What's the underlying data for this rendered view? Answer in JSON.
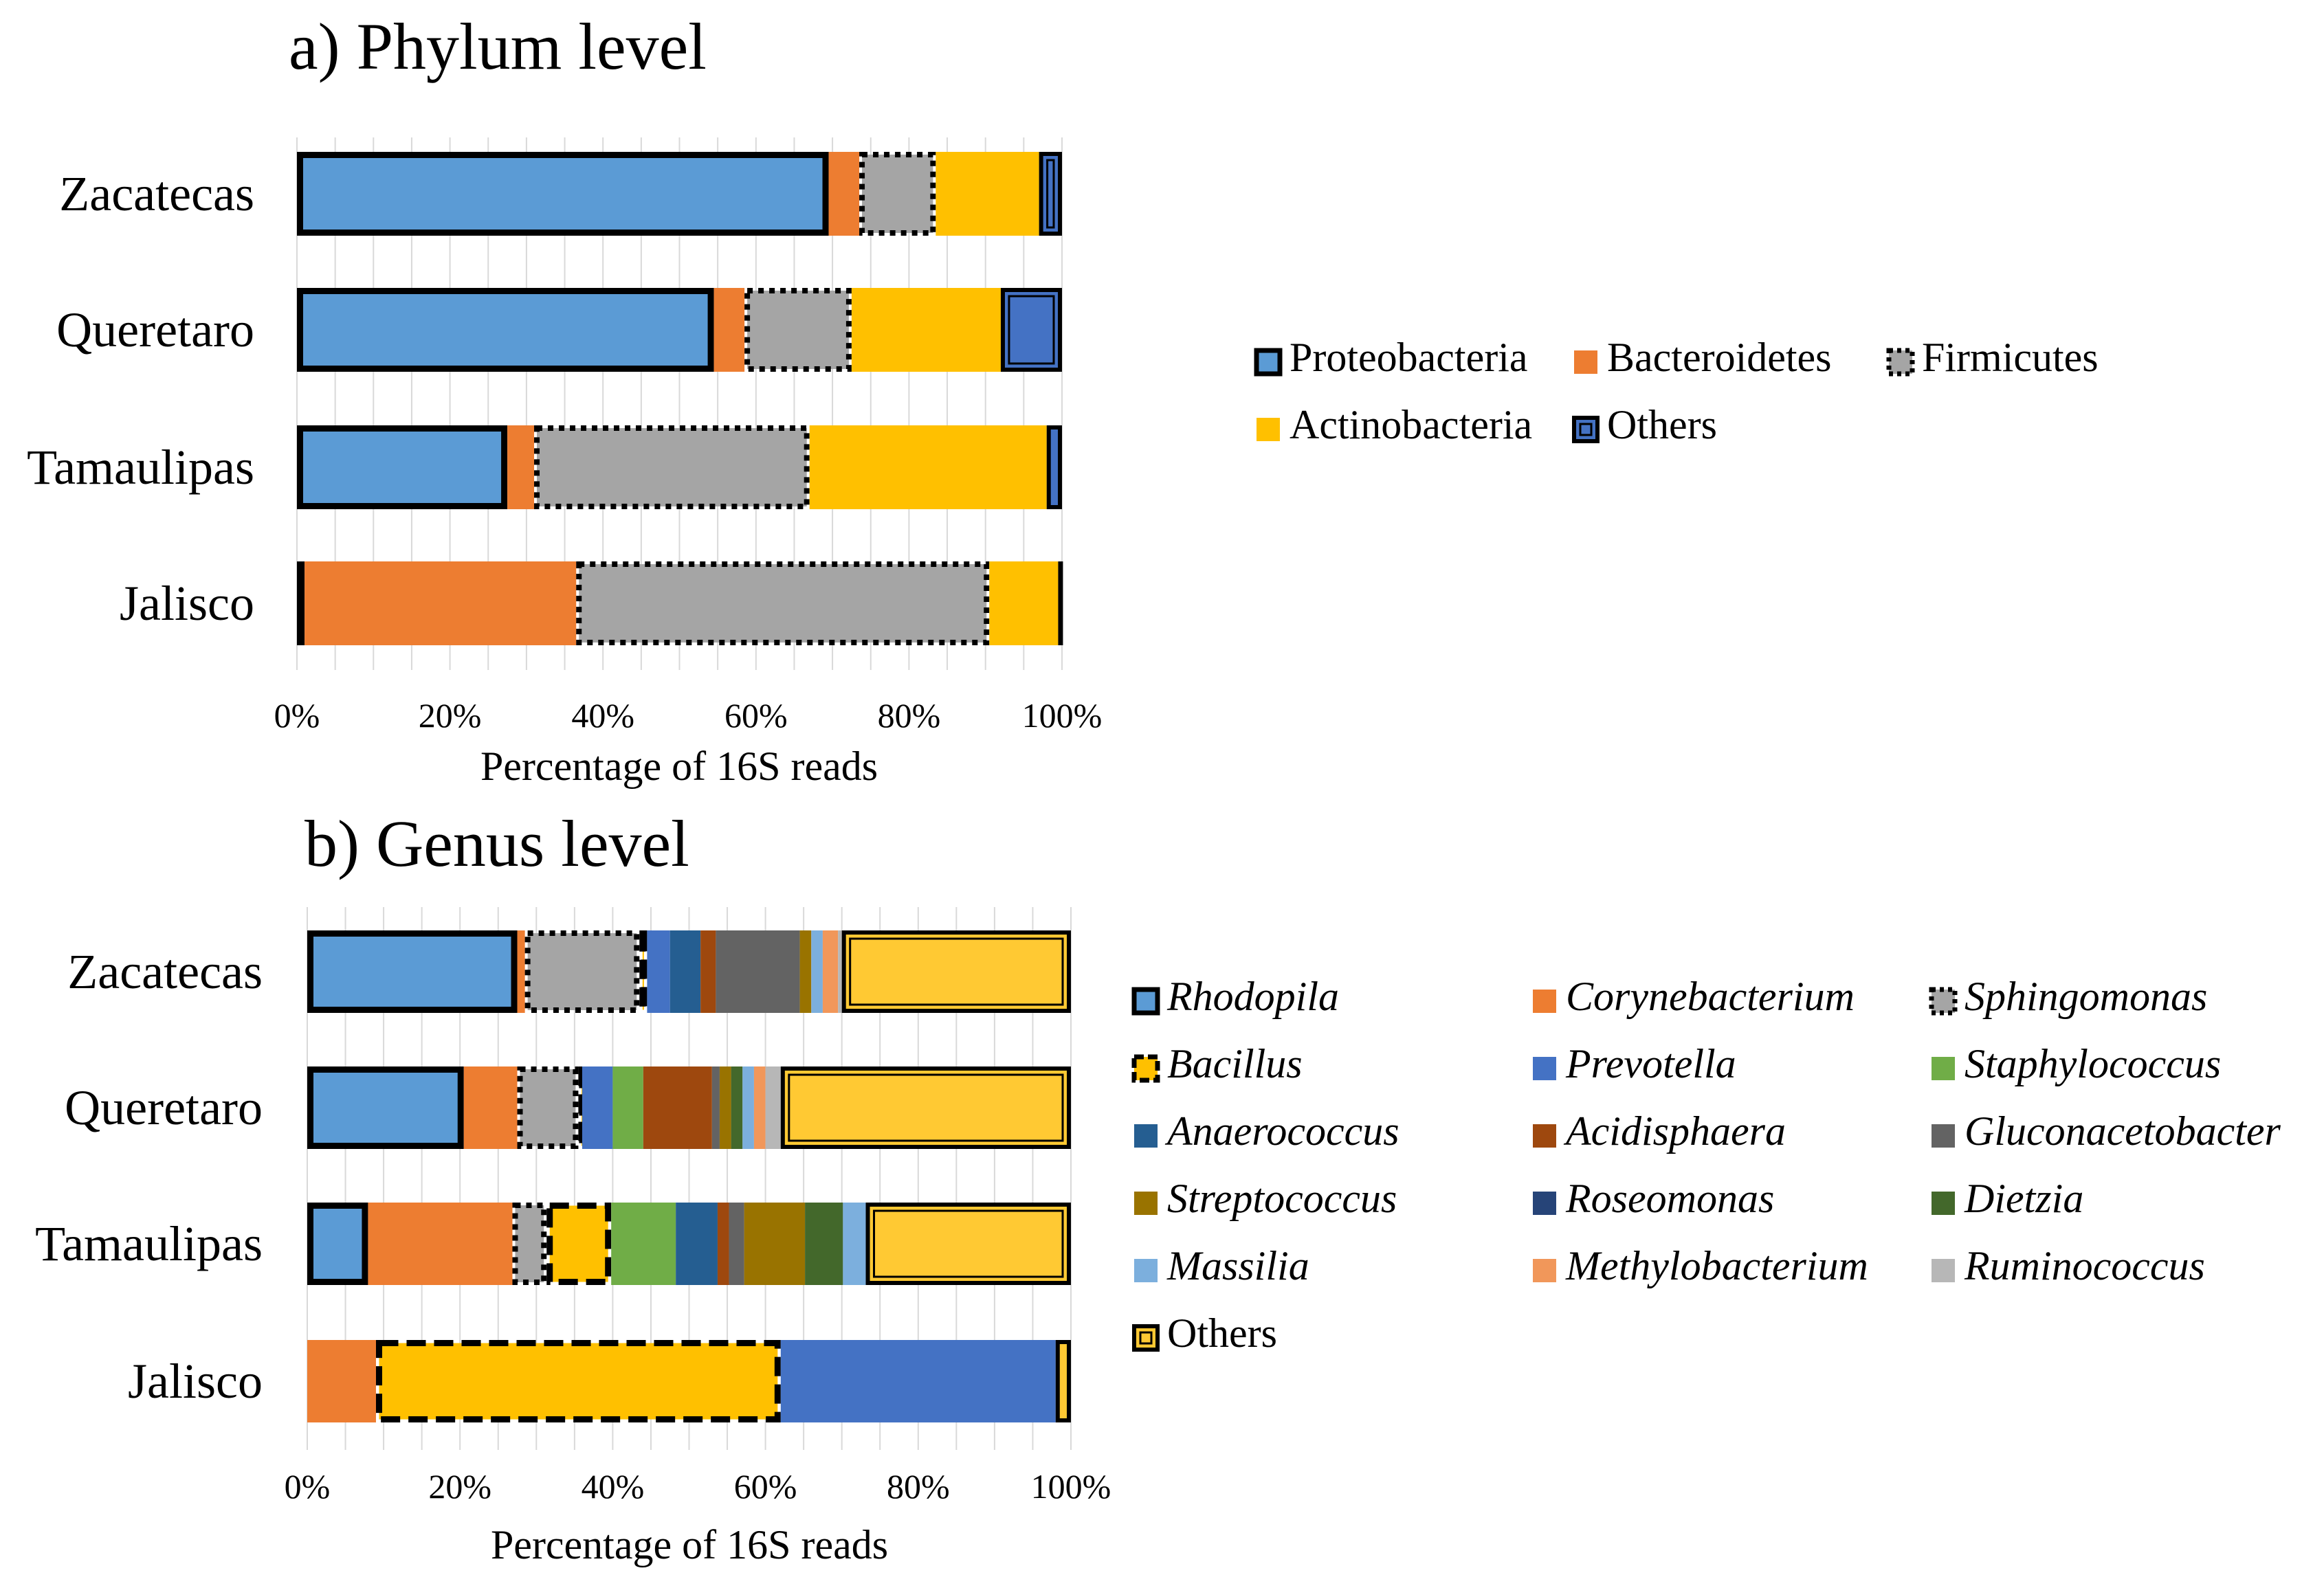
{
  "colors": {
    "proteobacteria": "#5B9BD5",
    "bacteroidetes": "#ED7D31",
    "firmicutes": "#A5A5A5",
    "actinobacteria": "#FFC000",
    "others_phylum": "#4472C4",
    "Rhodopila": "#5B9BD5",
    "Corynebacterium": "#ED7D31",
    "Sphingomonas": "#A5A5A5",
    "Bacillus": "#FFC000",
    "Prevotella": "#4472C4",
    "Staphylococcus": "#70AD47",
    "Anaerococcus": "#255E91",
    "Acidisphaera": "#9E480E",
    "Gluconacetobacter": "#636363",
    "Streptococcus": "#997300",
    "Roseomonas": "#264478",
    "Dietzia": "#43682B",
    "Massilia": "#7CAFDD",
    "Methylobacterium": "#F1975A",
    "Ruminococcus": "#B7B7B7",
    "others_genus": "#FFC933"
  },
  "chart_data": [
    {
      "type": "bar",
      "orientation": "horizontal-stacked-100",
      "title": "a) Phylum level",
      "xlabel": "Percentage  of 16S reads",
      "ylabel": "",
      "xlim": [
        0,
        100
      ],
      "x_ticks": [
        "0%",
        "20%",
        "40%",
        "60%",
        "80%",
        "100%"
      ],
      "grid": true,
      "legend_position": "right",
      "categories": [
        "Zacatecas",
        "Queretaro",
        "Tamaulipas",
        "Jalisco"
      ],
      "series": [
        {
          "name": "Proteobacteria",
          "key": "proteobacteria",
          "values": [
            69.5,
            54.5,
            27.5,
            1
          ],
          "border": "solid-thick"
        },
        {
          "name": "Bacteroidetes",
          "key": "bacteroidetes",
          "values": [
            4,
            4,
            3.5,
            35.5
          ],
          "border": "none"
        },
        {
          "name": "Firmicutes",
          "key": "firmicutes",
          "values": [
            10,
            14,
            36,
            54
          ],
          "border": "dotted"
        },
        {
          "name": "Actinobacteria",
          "key": "actinobacteria",
          "values": [
            13.5,
            19.5,
            31,
            9
          ],
          "border": "none"
        },
        {
          "name": "Others",
          "key": "others_phylum",
          "values": [
            3,
            8,
            2,
            0.5
          ],
          "border": "double"
        }
      ]
    },
    {
      "type": "bar",
      "orientation": "horizontal-stacked-100",
      "title": "b) Genus level",
      "xlabel": "Percentage  of 16S reads",
      "ylabel": "",
      "xlim": [
        0,
        100
      ],
      "x_ticks": [
        "0%",
        "20%",
        "40%",
        "60%",
        "80%",
        "100%"
      ],
      "grid": true,
      "legend_position": "right",
      "categories": [
        "Zacatecas",
        "Queretaro",
        "Tamaulipas",
        "Jalisco"
      ],
      "series": [
        {
          "name": "Rhodopila",
          "key": "Rhodopila",
          "values": [
            27.5,
            20.5,
            8,
            0
          ],
          "border": "solid-thick",
          "italic": true
        },
        {
          "name": "Corynebacterium",
          "key": "Corynebacterium",
          "values": [
            1,
            7,
            19,
            9
          ],
          "border": "none",
          "italic": true
        },
        {
          "name": "Sphingomonas",
          "key": "Sphingomonas",
          "values": [
            15,
            8,
            4.5,
            0
          ],
          "border": "dotted",
          "italic": true
        },
        {
          "name": "Bacillus",
          "key": "Bacillus",
          "values": [
            1,
            0.5,
            8.5,
            53
          ],
          "border": "dashed",
          "italic": true
        },
        {
          "name": "Prevotella",
          "key": "Prevotella",
          "values": [
            3,
            4,
            0,
            36
          ],
          "border": "none",
          "italic": true
        },
        {
          "name": "Staphylococcus",
          "key": "Staphylococcus",
          "values": [
            0,
            4,
            8.5,
            0
          ],
          "border": "none",
          "italic": true
        },
        {
          "name": "Anaerococcus",
          "key": "Anaerococcus",
          "values": [
            4,
            0,
            5.5,
            0
          ],
          "border": "none",
          "italic": true
        },
        {
          "name": "Acidisphaera",
          "key": "Acidisphaera",
          "values": [
            2,
            9,
            1.5,
            0
          ],
          "border": "none",
          "italic": true
        },
        {
          "name": "Gluconacetobacter",
          "key": "Gluconacetobacter",
          "values": [
            11,
            1,
            2,
            0
          ],
          "border": "none",
          "italic": true
        },
        {
          "name": "Streptococcus",
          "key": "Streptococcus",
          "values": [
            1.5,
            1.5,
            8,
            0
          ],
          "border": "none",
          "italic": true
        },
        {
          "name": "Roseomonas",
          "key": "Roseomonas",
          "values": [
            0,
            0,
            0,
            0
          ],
          "border": "none",
          "italic": true
        },
        {
          "name": "Dietzia",
          "key": "Dietzia",
          "values": [
            0,
            1.5,
            5,
            0
          ],
          "border": "none",
          "italic": true
        },
        {
          "name": "Massilia",
          "key": "Massilia",
          "values": [
            1.5,
            1.5,
            3,
            0
          ],
          "border": "none",
          "italic": true
        },
        {
          "name": "Methylobacterium",
          "key": "Methylobacterium",
          "values": [
            2,
            1.5,
            0,
            0
          ],
          "border": "none",
          "italic": true
        },
        {
          "name": "Ruminococcus",
          "key": "Ruminococcus",
          "values": [
            0.5,
            2,
            0,
            0
          ],
          "border": "none",
          "italic": true
        },
        {
          "name": "Others",
          "key": "others_genus",
          "values": [
            30,
            38,
            27,
            2
          ],
          "border": "double",
          "italic": false
        }
      ]
    }
  ]
}
